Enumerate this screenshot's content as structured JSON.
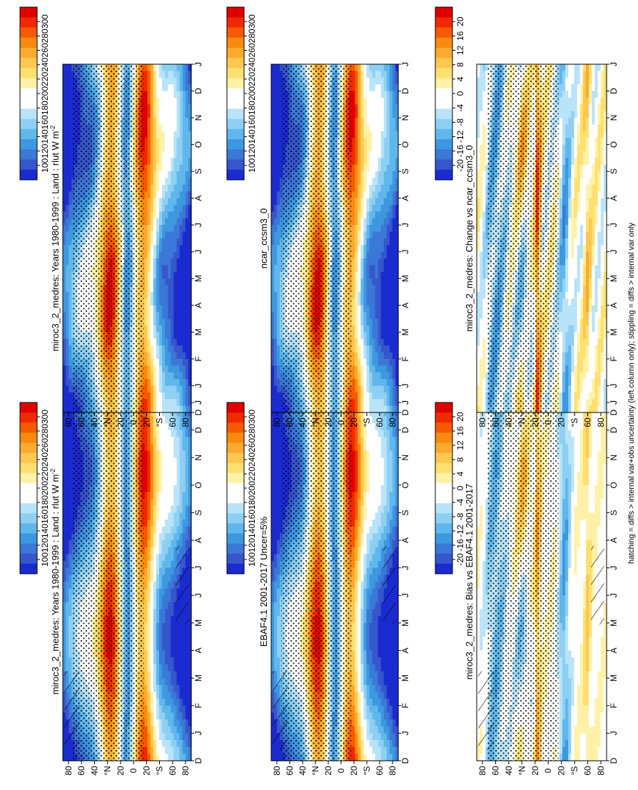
{
  "footer_note": "hatching = diffs > internal var+obs uncertainty (left column only); stippling = diffs > internal var only",
  "colors": {
    "abs_scale": [
      "#e00000",
      "#f02a00",
      "#f55a00",
      "#f98a10",
      "#fbaa30",
      "#fcc850",
      "#fde070",
      "#fff2a8",
      "#ffffff",
      "#ffffff",
      "#b9e3f8",
      "#8ed0f3",
      "#5fb7ec",
      "#3d98e0",
      "#3b78d8",
      "#3656cc",
      "#1a2bd0"
    ],
    "diff_scale": [
      "#e00000",
      "#f02a00",
      "#f55a00",
      "#f98a10",
      "#fbaa30",
      "#fcc850",
      "#fde070",
      "#fff2a8",
      "#ffffff",
      "#ffffff",
      "#b9e3f8",
      "#8ed0f3",
      "#5fb7ec",
      "#3d98e0",
      "#3b78d8",
      "#3656cc",
      "#1a2bd0"
    ]
  },
  "chart_data": [
    {
      "id": "obs",
      "type": "heatmap",
      "title": "miroc3_2_medres: Years 1980-1999 : Land : rlut W m",
      "title_sup": "-2",
      "xlabel": "",
      "x_ticks": [
        "D",
        "J",
        "F",
        "M",
        "A",
        "M",
        "J",
        "J",
        "A",
        "S",
        "O",
        "N",
        "D",
        "J"
      ],
      "y_ticks": [
        "80",
        "60",
        "40",
        "°N",
        "20",
        "0",
        "20",
        "°S",
        "60",
        "80"
      ],
      "colorbar_labels": [
        "300",
        "280",
        "260",
        "240",
        "220",
        "200",
        "180",
        "160",
        "140",
        "120",
        "100"
      ],
      "scale": "abs",
      "hatching": true
    },
    {
      "id": "model",
      "type": "heatmap",
      "title": "miroc3_2_medres: Years 1980-1999 : Land : rlut W m",
      "title_sup": "-2",
      "x_ticks": [
        "D",
        "J",
        "F",
        "M",
        "A",
        "M",
        "J",
        "J",
        "A",
        "S",
        "O",
        "N",
        "D",
        "J"
      ],
      "y_ticks": [
        "80",
        "60",
        "40",
        "°N",
        "20",
        "0",
        "20",
        "°S",
        "60",
        "80"
      ],
      "colorbar_labels": [
        "300",
        "280",
        "260",
        "240",
        "220",
        "200",
        "180",
        "160",
        "140",
        "120",
        "100"
      ],
      "scale": "abs",
      "hatching": false
    },
    {
      "id": "ref",
      "type": "heatmap",
      "title": "EBAF4.1 2001-2017 Uncer=5%",
      "title_sup": "",
      "x_ticks": [
        "D",
        "J",
        "F",
        "M",
        "A",
        "M",
        "J",
        "J",
        "A",
        "S",
        "O",
        "N",
        "D",
        "J"
      ],
      "y_ticks": [
        "80",
        "60",
        "40",
        "°N",
        "20",
        "0",
        "20",
        "°S",
        "60",
        "80"
      ],
      "colorbar_labels": [
        "300",
        "280",
        "260",
        "240",
        "220",
        "200",
        "180",
        "160",
        "140",
        "120",
        "100"
      ],
      "scale": "abs",
      "hatching": true
    },
    {
      "id": "ref2",
      "type": "heatmap",
      "title": "ncar_ccsm3_0",
      "title_sup": "",
      "x_ticks": [
        "D",
        "J",
        "F",
        "M",
        "A",
        "M",
        "J",
        "J",
        "A",
        "S",
        "O",
        "N",
        "D",
        "J"
      ],
      "y_ticks": [
        "80",
        "60",
        "40",
        "°N",
        "20",
        "0",
        "20",
        "°S",
        "60",
        "80"
      ],
      "colorbar_labels": [
        "300",
        "280",
        "260",
        "240",
        "220",
        "200",
        "180",
        "160",
        "140",
        "120",
        "100"
      ],
      "scale": "abs",
      "hatching": false
    },
    {
      "id": "bias",
      "type": "heatmap",
      "title": "miroc3_2_medres: Bias vs EBAF4.1 2001-2017",
      "title_sup": "",
      "x_ticks": [
        "D",
        "J",
        "F",
        "M",
        "A",
        "M",
        "J",
        "J",
        "A",
        "S",
        "O",
        "N",
        "D",
        "J"
      ],
      "y_ticks": [
        "80",
        "60",
        "40",
        "°N",
        "20",
        "0",
        "20",
        "°S",
        "60",
        "80"
      ],
      "colorbar_labels": [
        "20",
        "16",
        "12",
        "8",
        "4",
        "0",
        "-4",
        "-8",
        "-12",
        "-16",
        "-20"
      ],
      "scale": "diff",
      "hatching": true
    },
    {
      "id": "change",
      "type": "heatmap",
      "title": "miroc3_2_medres: Change vs ncar_ccsm3_0",
      "title_sup": "",
      "x_ticks": [
        "D",
        "J",
        "F",
        "M",
        "A",
        "M",
        "J",
        "J",
        "A",
        "S",
        "O",
        "N",
        "D",
        "J"
      ],
      "y_ticks": [
        "80",
        "60",
        "40",
        "°N",
        "20",
        "0",
        "20",
        "°S",
        "60",
        "80"
      ],
      "colorbar_labels": [
        "20",
        "16",
        "12",
        "8",
        "4",
        "0",
        "-4",
        "-8",
        "-12",
        "-16",
        "-20"
      ],
      "scale": "diff",
      "hatching": false
    }
  ]
}
